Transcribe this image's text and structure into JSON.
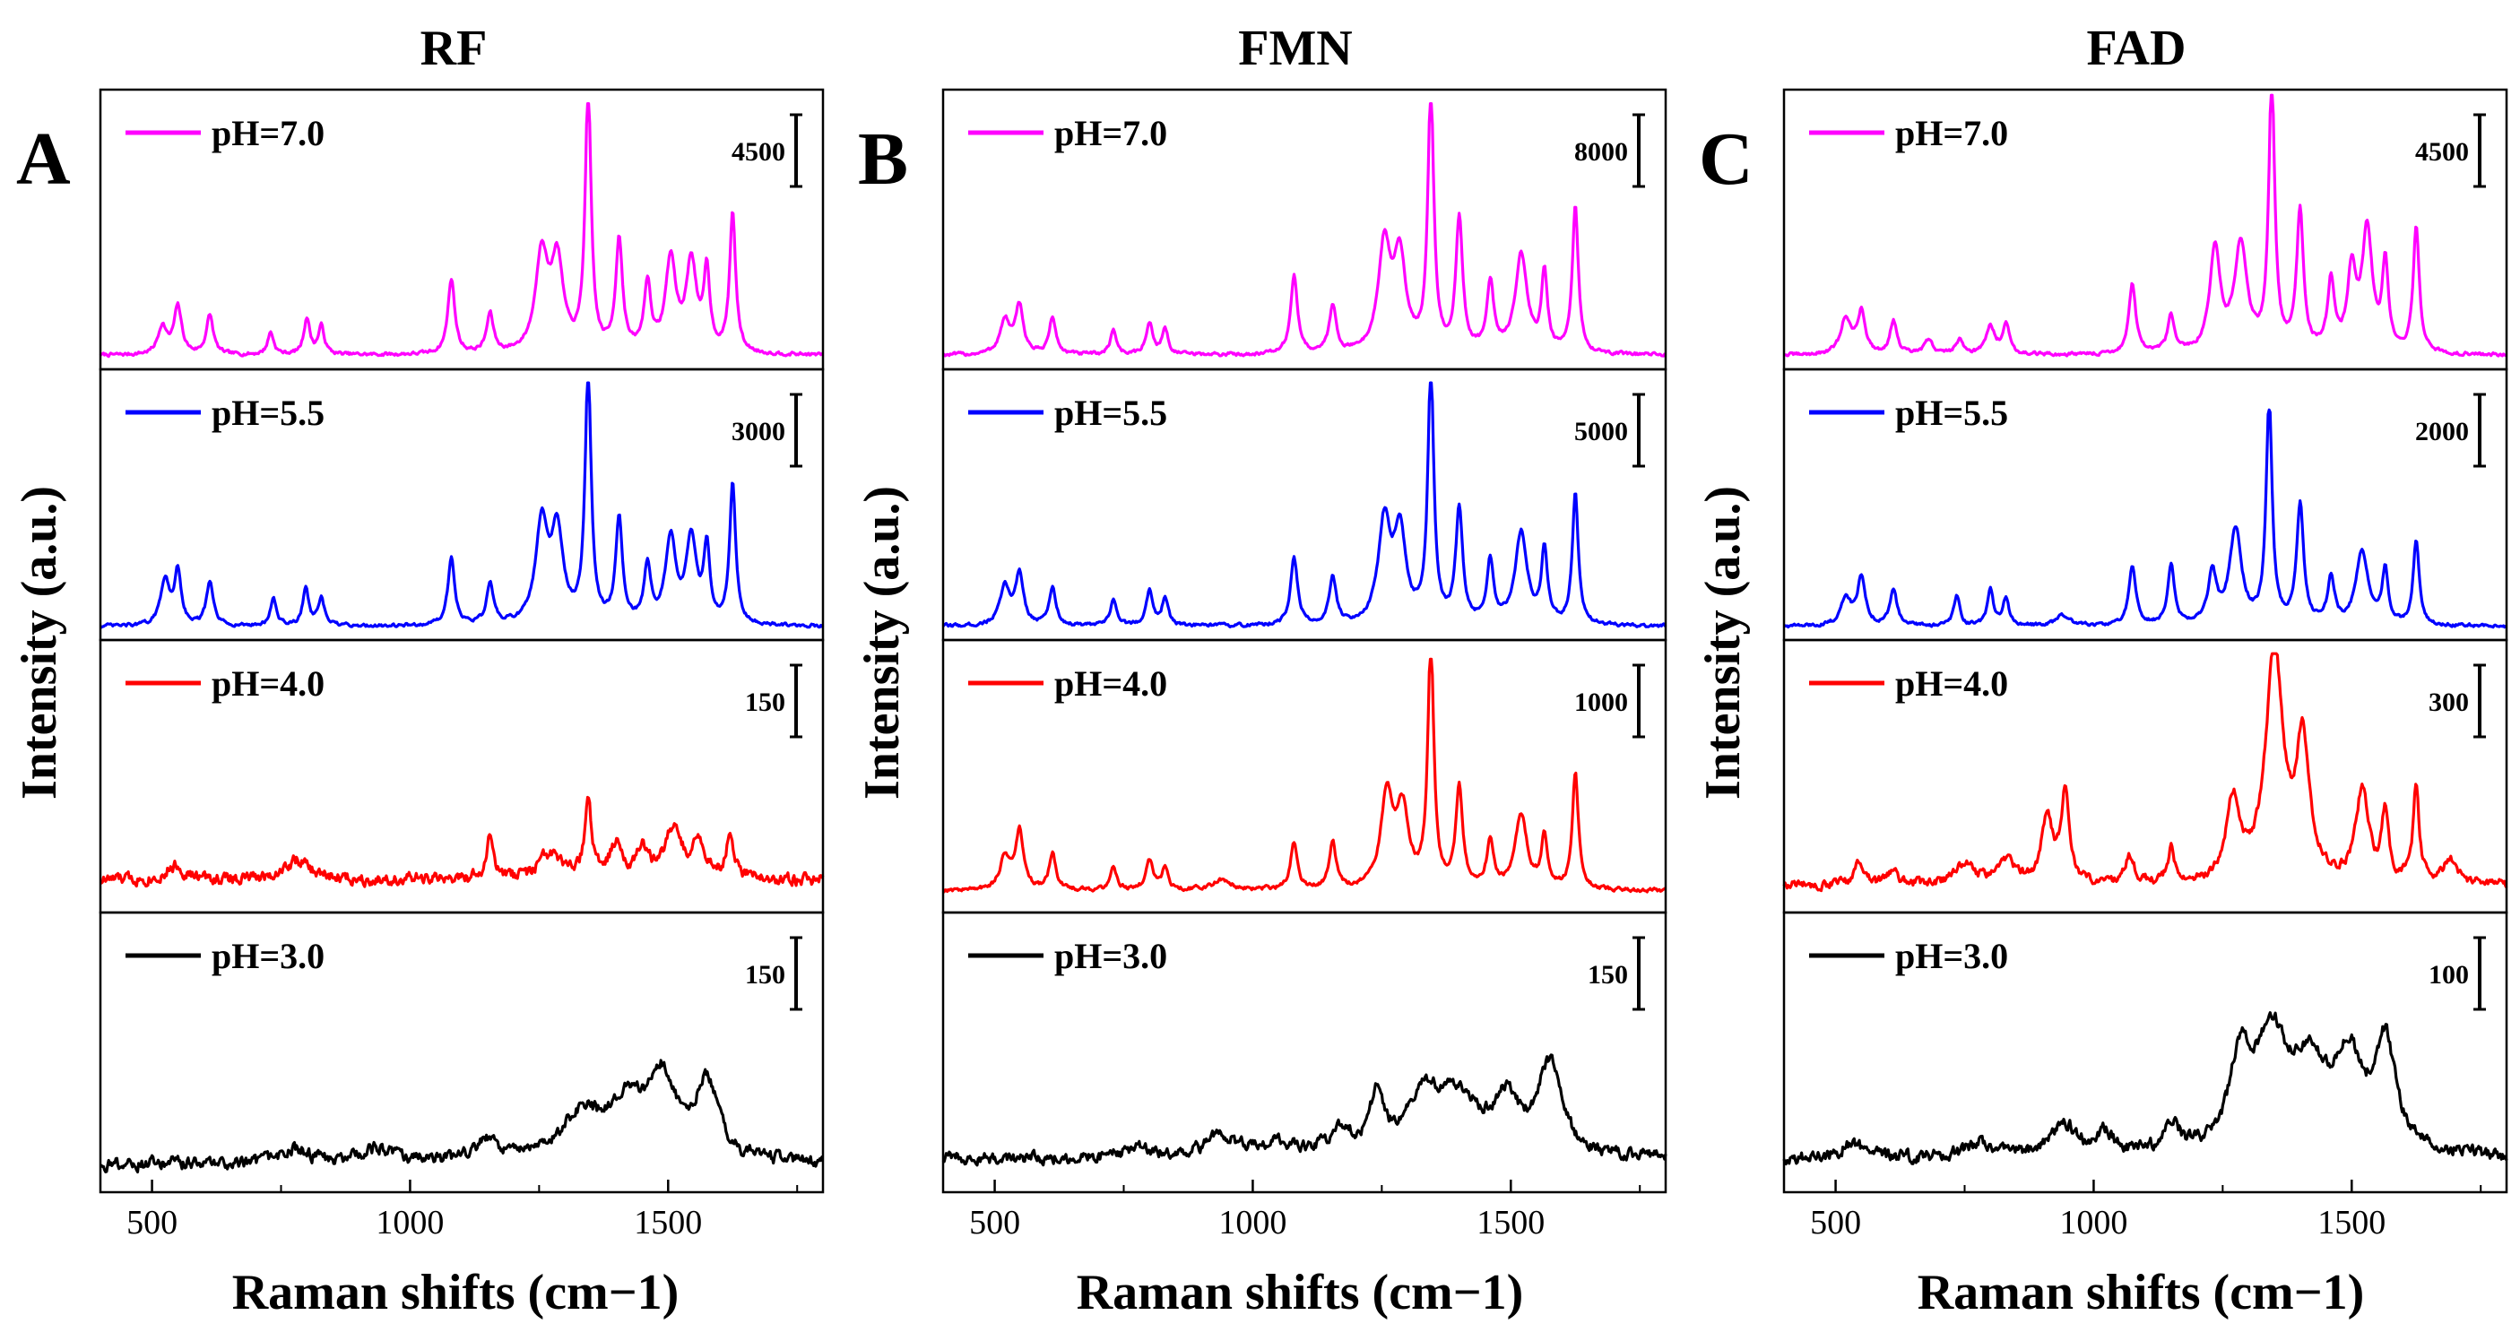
{
  "chart_data": [
    {
      "type": "line",
      "panel_letter": "A",
      "title": "RF",
      "xlabel": "Raman shifts (cm−1)",
      "ylabel": "Intensity (a.u.)",
      "xlim": [
        400,
        1800
      ],
      "xticks": [
        500,
        1000,
        1500
      ],
      "xtick_labels": [
        "500",
        "1000",
        "1500"
      ],
      "grid": false,
      "subplots": [
        {
          "label": "pH=7.0",
          "color": "#ff00ff",
          "scale_bar": "4500",
          "baseline": 0.05,
          "ymax": 0.95,
          "noise": 0.005,
          "peaks": [
            [
              520,
              0.1,
              10
            ],
            [
              550,
              0.17,
              9
            ],
            [
              612,
              0.14,
              8
            ],
            [
              730,
              0.08,
              7
            ],
            [
              800,
              0.13,
              7
            ],
            [
              828,
              0.1,
              7
            ],
            [
              1080,
              0.27,
              8
            ],
            [
              1155,
              0.14,
              8
            ],
            [
              1255,
              0.35,
              14
            ],
            [
              1285,
              0.32,
              14
            ],
            [
              1345,
              0.93,
              7
            ],
            [
              1405,
              0.4,
              8
            ],
            [
              1460,
              0.24,
              8
            ],
            [
              1505,
              0.33,
              12
            ],
            [
              1545,
              0.32,
              12
            ],
            [
              1575,
              0.28,
              7
            ],
            [
              1625,
              0.5,
              7
            ]
          ]
        },
        {
          "label": "pH=5.5",
          "color": "#0000ff",
          "scale_bar": "3000",
          "baseline": 0.05,
          "ymax": 0.95,
          "noise": 0.005,
          "peaks": [
            [
              525,
              0.17,
              10
            ],
            [
              550,
              0.2,
              8
            ],
            [
              612,
              0.16,
              8
            ],
            [
              735,
              0.1,
              7
            ],
            [
              798,
              0.14,
              7
            ],
            [
              828,
              0.1,
              7
            ],
            [
              1080,
              0.25,
              8
            ],
            [
              1155,
              0.15,
              8
            ],
            [
              1255,
              0.36,
              14
            ],
            [
              1285,
              0.33,
              14
            ],
            [
              1345,
              0.93,
              7
            ],
            [
              1405,
              0.38,
              8
            ],
            [
              1460,
              0.21,
              8
            ],
            [
              1505,
              0.31,
              12
            ],
            [
              1545,
              0.31,
              12
            ],
            [
              1575,
              0.27,
              7
            ],
            [
              1625,
              0.52,
              7
            ]
          ]
        },
        {
          "label": "pH=4.0",
          "color": "#ff0000",
          "scale_bar": "150",
          "baseline": 0.12,
          "ymax": 0.95,
          "noise": 0.018,
          "peaks": [
            [
              545,
              0.05,
              20
            ],
            [
              780,
              0.07,
              30
            ],
            [
              1155,
              0.15,
              8
            ],
            [
              1270,
              0.09,
              25
            ],
            [
              1345,
              0.28,
              8
            ],
            [
              1400,
              0.12,
              15
            ],
            [
              1450,
              0.1,
              15
            ],
            [
              1510,
              0.18,
              18
            ],
            [
              1560,
              0.14,
              15
            ],
            [
              1620,
              0.16,
              8
            ]
          ]
        },
        {
          "label": "pH=3.0",
          "color": "#000000",
          "scale_bar": "150",
          "baseline": 0.1,
          "ymax": 0.85,
          "noise": 0.018,
          "peaks": [
            [
              780,
              0.05,
              30
            ],
            [
              940,
              0.05,
              40
            ],
            [
              1150,
              0.08,
              25
            ],
            [
              1330,
              0.15,
              45
            ],
            [
              1420,
              0.2,
              50
            ],
            [
              1490,
              0.26,
              30
            ],
            [
              1575,
              0.28,
              25
            ]
          ]
        }
      ]
    },
    {
      "type": "line",
      "panel_letter": "B",
      "title": "FMN",
      "xlabel": "Raman shifts (cm−1)",
      "ylabel": "Intensity (a.u.)",
      "xlim": [
        400,
        1800
      ],
      "xticks": [
        500,
        1000,
        1500
      ],
      "xtick_labels": [
        "500",
        "1000",
        "1500"
      ],
      "grid": false,
      "subplots": [
        {
          "label": "pH=7.0",
          "color": "#ff00ff",
          "scale_bar": "8000",
          "baseline": 0.05,
          "ymax": 0.95,
          "noise": 0.005,
          "peaks": [
            [
              520,
              0.12,
              12
            ],
            [
              548,
              0.17,
              9
            ],
            [
              612,
              0.13,
              8
            ],
            [
              730,
              0.09,
              7
            ],
            [
              800,
              0.11,
              8
            ],
            [
              830,
              0.09,
              7
            ],
            [
              1080,
              0.28,
              8
            ],
            [
              1155,
              0.17,
              8
            ],
            [
              1255,
              0.38,
              14
            ],
            [
              1285,
              0.33,
              14
            ],
            [
              1345,
              0.93,
              7
            ],
            [
              1400,
              0.47,
              8
            ],
            [
              1460,
              0.25,
              8
            ],
            [
              1520,
              0.35,
              14
            ],
            [
              1565,
              0.28,
              7
            ],
            [
              1625,
              0.52,
              7
            ]
          ]
        },
        {
          "label": "pH=5.5",
          "color": "#0000ff",
          "scale_bar": "5000",
          "baseline": 0.05,
          "ymax": 0.95,
          "noise": 0.005,
          "peaks": [
            [
              520,
              0.14,
              12
            ],
            [
              548,
              0.19,
              9
            ],
            [
              612,
              0.14,
              8
            ],
            [
              730,
              0.1,
              7
            ],
            [
              800,
              0.13,
              8
            ],
            [
              830,
              0.1,
              7
            ],
            [
              1080,
              0.25,
              8
            ],
            [
              1155,
              0.18,
              8
            ],
            [
              1255,
              0.37,
              14
            ],
            [
              1285,
              0.33,
              14
            ],
            [
              1345,
              0.93,
              7
            ],
            [
              1400,
              0.42,
              8
            ],
            [
              1460,
              0.23,
              8
            ],
            [
              1520,
              0.34,
              14
            ],
            [
              1565,
              0.27,
              7
            ],
            [
              1625,
              0.48,
              7
            ]
          ]
        },
        {
          "label": "pH=4.0",
          "color": "#ff0000",
          "scale_bar": "1000",
          "baseline": 0.08,
          "ymax": 0.93,
          "noise": 0.006,
          "peaks": [
            [
              520,
              0.12,
              12
            ],
            [
              548,
              0.21,
              9
            ],
            [
              612,
              0.13,
              8
            ],
            [
              730,
              0.09,
              7
            ],
            [
              800,
              0.11,
              8
            ],
            [
              830,
              0.08,
              7
            ],
            [
              940,
              0.04,
              20
            ],
            [
              1080,
              0.17,
              8
            ],
            [
              1155,
              0.17,
              8
            ],
            [
              1260,
              0.34,
              14
            ],
            [
              1290,
              0.28,
              14
            ],
            [
              1345,
              0.9,
              7
            ],
            [
              1400,
              0.37,
              8
            ],
            [
              1460,
              0.17,
              8
            ],
            [
              1520,
              0.27,
              14
            ],
            [
              1565,
              0.19,
              7
            ],
            [
              1625,
              0.43,
              7
            ]
          ]
        },
        {
          "label": "pH=3.0",
          "color": "#000000",
          "scale_bar": "150",
          "baseline": 0.12,
          "ymax": 0.85,
          "noise": 0.017,
          "peaks": [
            [
              780,
              0.04,
              30
            ],
            [
              940,
              0.08,
              35
            ],
            [
              1050,
              0.05,
              30
            ],
            [
              1170,
              0.09,
              25
            ],
            [
              1240,
              0.19,
              15
            ],
            [
              1330,
              0.2,
              45
            ],
            [
              1400,
              0.18,
              45
            ],
            [
              1490,
              0.18,
              30
            ],
            [
              1575,
              0.32,
              28
            ]
          ]
        }
      ]
    },
    {
      "type": "line",
      "panel_letter": "C",
      "title": "FAD",
      "xlabel": "Raman shifts (cm−1)",
      "ylabel": "Intensity (a.u.)",
      "xlim": [
        400,
        1800
      ],
      "xticks": [
        500,
        1000,
        1500
      ],
      "xtick_labels": [
        "500",
        "1000",
        "1500"
      ],
      "grid": false,
      "subplots": [
        {
          "label": "pH=7.0",
          "color": "#ff00ff",
          "scale_bar": "4500",
          "baseline": 0.05,
          "ymax": 0.98,
          "noise": 0.005,
          "peaks": [
            [
              520,
              0.13,
              12
            ],
            [
              550,
              0.15,
              9
            ],
            [
              612,
              0.12,
              8
            ],
            [
              680,
              0.05,
              10
            ],
            [
              740,
              0.05,
              10
            ],
            [
              800,
              0.1,
              10
            ],
            [
              830,
              0.11,
              8
            ],
            [
              1075,
              0.25,
              8
            ],
            [
              1150,
              0.13,
              8
            ],
            [
              1235,
              0.37,
              12
            ],
            [
              1285,
              0.38,
              15
            ],
            [
              1345,
              0.97,
              7
            ],
            [
              1400,
              0.5,
              8
            ],
            [
              1460,
              0.25,
              8
            ],
            [
              1500,
              0.28,
              10
            ],
            [
              1530,
              0.43,
              12
            ],
            [
              1565,
              0.31,
              7
            ],
            [
              1625,
              0.45,
              7
            ]
          ]
        },
        {
          "label": "pH=5.5",
          "color": "#0000ff",
          "scale_bar": "2000",
          "baseline": 0.05,
          "ymax": 0.85,
          "noise": 0.005,
          "peaks": [
            [
              520,
              0.1,
              12
            ],
            [
              550,
              0.18,
              9
            ],
            [
              612,
              0.14,
              8
            ],
            [
              735,
              0.11,
              7
            ],
            [
              800,
              0.13,
              7
            ],
            [
              830,
              0.1,
              7
            ],
            [
              940,
              0.04,
              15
            ],
            [
              1075,
              0.22,
              8
            ],
            [
              1150,
              0.22,
              8
            ],
            [
              1230,
              0.18,
              10
            ],
            [
              1275,
              0.35,
              14
            ],
            [
              1340,
              0.82,
              7
            ],
            [
              1400,
              0.44,
              8
            ],
            [
              1460,
              0.17,
              8
            ],
            [
              1520,
              0.27,
              14
            ],
            [
              1565,
              0.2,
              7
            ],
            [
              1625,
              0.31,
              7
            ]
          ]
        },
        {
          "label": "pH=4.0",
          "color": "#ff0000",
          "scale_bar": "300",
          "baseline": 0.1,
          "ymax": 0.95,
          "noise": 0.013,
          "peaks": [
            [
              545,
              0.08,
              10
            ],
            [
              612,
              0.06,
              10
            ],
            [
              750,
              0.08,
              20
            ],
            [
              830,
              0.09,
              20
            ],
            [
              910,
              0.25,
              12
            ],
            [
              945,
              0.32,
              10
            ],
            [
              1070,
              0.1,
              10
            ],
            [
              1150,
              0.12,
              8
            ],
            [
              1270,
              0.3,
              15
            ],
            [
              1350,
              0.85,
              20
            ],
            [
              1405,
              0.5,
              15
            ],
            [
              1520,
              0.33,
              15
            ],
            [
              1565,
              0.25,
              8
            ],
            [
              1625,
              0.35,
              7
            ],
            [
              1690,
              0.09,
              15
            ]
          ]
        },
        {
          "label": "pH=3.0",
          "color": "#000000",
          "scale_bar": "100",
          "baseline": 0.12,
          "ymax": 0.85,
          "noise": 0.018,
          "peaks": [
            [
              530,
              0.05,
              25
            ],
            [
              780,
              0.05,
              30
            ],
            [
              940,
              0.12,
              30
            ],
            [
              1020,
              0.08,
              20
            ],
            [
              1150,
              0.1,
              20
            ],
            [
              1285,
              0.32,
              25
            ],
            [
              1345,
              0.38,
              35
            ],
            [
              1420,
              0.28,
              45
            ],
            [
              1495,
              0.3,
              30
            ],
            [
              1565,
              0.38,
              25
            ]
          ]
        }
      ]
    }
  ]
}
